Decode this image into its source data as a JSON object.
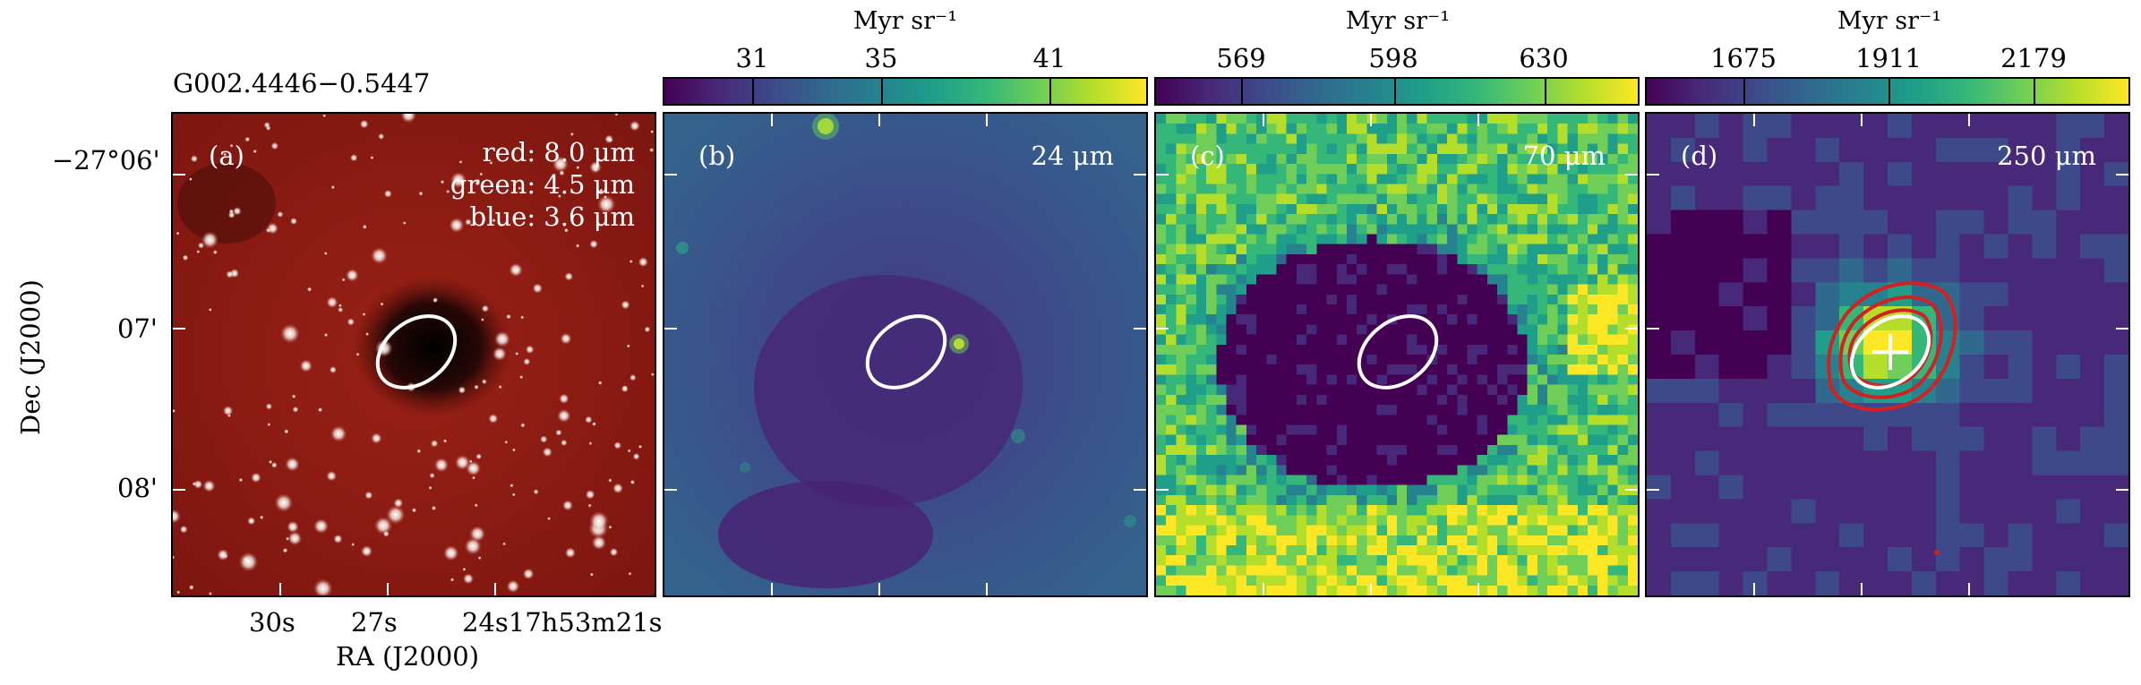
{
  "source_name": "G002.4446−0.5447",
  "panels": [
    {
      "id": "a",
      "label": "(a)",
      "rgb_legend": [
        "red: 8.0 μm",
        "green: 4.5 μm",
        "blue: 3.6 μm"
      ]
    },
    {
      "id": "b",
      "label": "(b)",
      "wavelength": "24 μm",
      "colorbar": {
        "unit": "Myr sr⁻¹",
        "ticks": [
          "31",
          "35",
          "41"
        ]
      }
    },
    {
      "id": "c",
      "label": "(c)",
      "wavelength": "70 μm",
      "colorbar": {
        "unit": "Myr sr⁻¹",
        "ticks": [
          "569",
          "598",
          "630"
        ]
      }
    },
    {
      "id": "d",
      "label": "(d)",
      "wavelength": "250 μm",
      "colorbar": {
        "unit": "Myr sr⁻¹",
        "ticks": [
          "1675",
          "1911",
          "2179"
        ]
      }
    }
  ],
  "axes": {
    "ylabel": "Dec (J2000)",
    "xlabel": "RA (J2000)",
    "yticks": [
      "−27°06'",
      "07'",
      "08'"
    ],
    "xticks": [
      "30s",
      "27s",
      "24s17h53m21s"
    ]
  },
  "colors": {
    "ellipse": "#ffffff",
    "contour": "#d42020",
    "panel_a_background": "#8e1a12",
    "colormap": "viridis"
  }
}
